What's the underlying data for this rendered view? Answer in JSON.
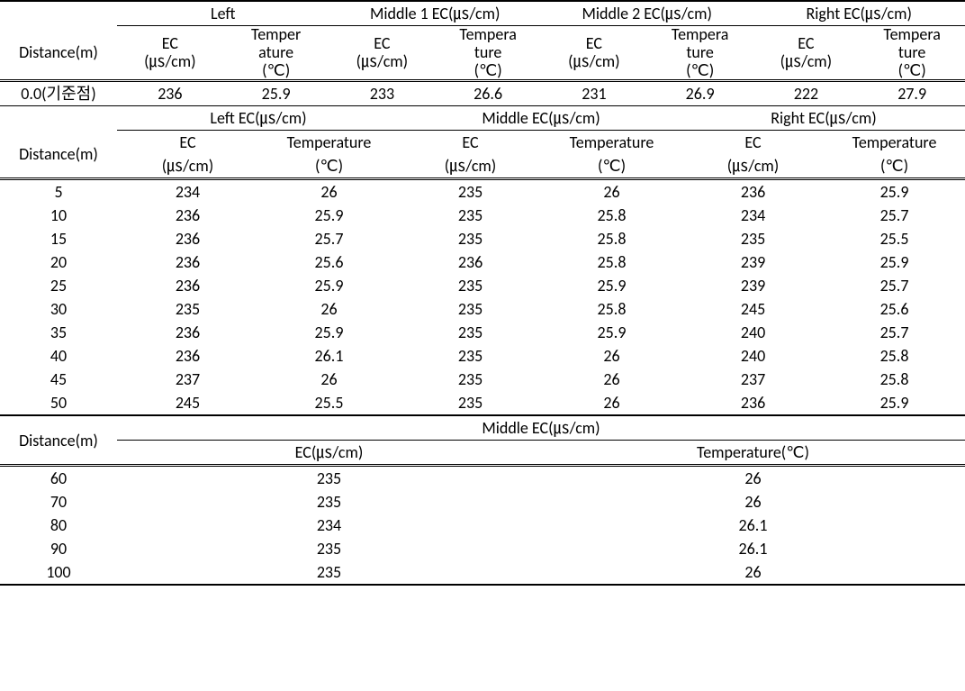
{
  "labels": {
    "distance": "Distance(m)",
    "ec": "EC",
    "ec_unit": "(㎲/cm)",
    "ec_full": "EC(㎲/cm)",
    "temp": "Tempera",
    "temp2": "ture",
    "temp_line1": "Temper",
    "temp_line2": "ature",
    "temp_unit": "(℃)",
    "temperature": "Temperature",
    "temperature_full": "Temperature(℃)",
    "left": "Left",
    "middle1": "Middle 1 EC(㎲/cm)",
    "middle2": "Middle 2 EC(㎲/cm)",
    "right": "Right EC(㎲/cm)",
    "left_ec": "Left EC(㎲/cm)",
    "middle_ec": "Middle EC(㎲/cm)",
    "right_ec2": "Right EC(㎲/cm)",
    "middle_only": "Middle EC(㎲/cm)"
  },
  "section1": {
    "row_label": "0.0(기준점)",
    "data": [
      "236",
      "25.9",
      "233",
      "26.6",
      "231",
      "26.9",
      "222",
      "27.9"
    ]
  },
  "section2": {
    "rows": [
      {
        "d": "5",
        "v": [
          "234",
          "26",
          "235",
          "26",
          "236",
          "25.9"
        ]
      },
      {
        "d": "10",
        "v": [
          "236",
          "25.9",
          "235",
          "25.8",
          "234",
          "25.7"
        ]
      },
      {
        "d": "15",
        "v": [
          "236",
          "25.7",
          "235",
          "25.8",
          "235",
          "25.5"
        ]
      },
      {
        "d": "20",
        "v": [
          "236",
          "25.6",
          "236",
          "25.8",
          "239",
          "25.9"
        ]
      },
      {
        "d": "25",
        "v": [
          "236",
          "25.9",
          "235",
          "25.9",
          "239",
          "25.7"
        ]
      },
      {
        "d": "30",
        "v": [
          "235",
          "26",
          "235",
          "25.8",
          "245",
          "25.6"
        ]
      },
      {
        "d": "35",
        "v": [
          "236",
          "25.9",
          "235",
          "25.9",
          "240",
          "25.7"
        ]
      },
      {
        "d": "40",
        "v": [
          "236",
          "26.1",
          "235",
          "26",
          "240",
          "25.8"
        ]
      },
      {
        "d": "45",
        "v": [
          "237",
          "26",
          "235",
          "26",
          "237",
          "25.8"
        ]
      },
      {
        "d": "50",
        "v": [
          "245",
          "25.5",
          "235",
          "26",
          "236",
          "25.9"
        ]
      }
    ]
  },
  "section3": {
    "rows": [
      {
        "d": "60",
        "ec": "235",
        "t": "26"
      },
      {
        "d": "70",
        "ec": "235",
        "t": "26"
      },
      {
        "d": "80",
        "ec": "234",
        "t": "26.1"
      },
      {
        "d": "90",
        "ec": "235",
        "t": "26.1"
      },
      {
        "d": "100",
        "ec": "235",
        "t": "26"
      }
    ]
  },
  "style": {
    "type": "table",
    "background_color": "#ffffff",
    "text_color": "#000000",
    "rule_thin": "1px solid #000",
    "rule_thick": "2px solid #000",
    "rule_double": "3px double #000",
    "font_family": "Malgun Gothic",
    "font_size_pt": 13
  }
}
